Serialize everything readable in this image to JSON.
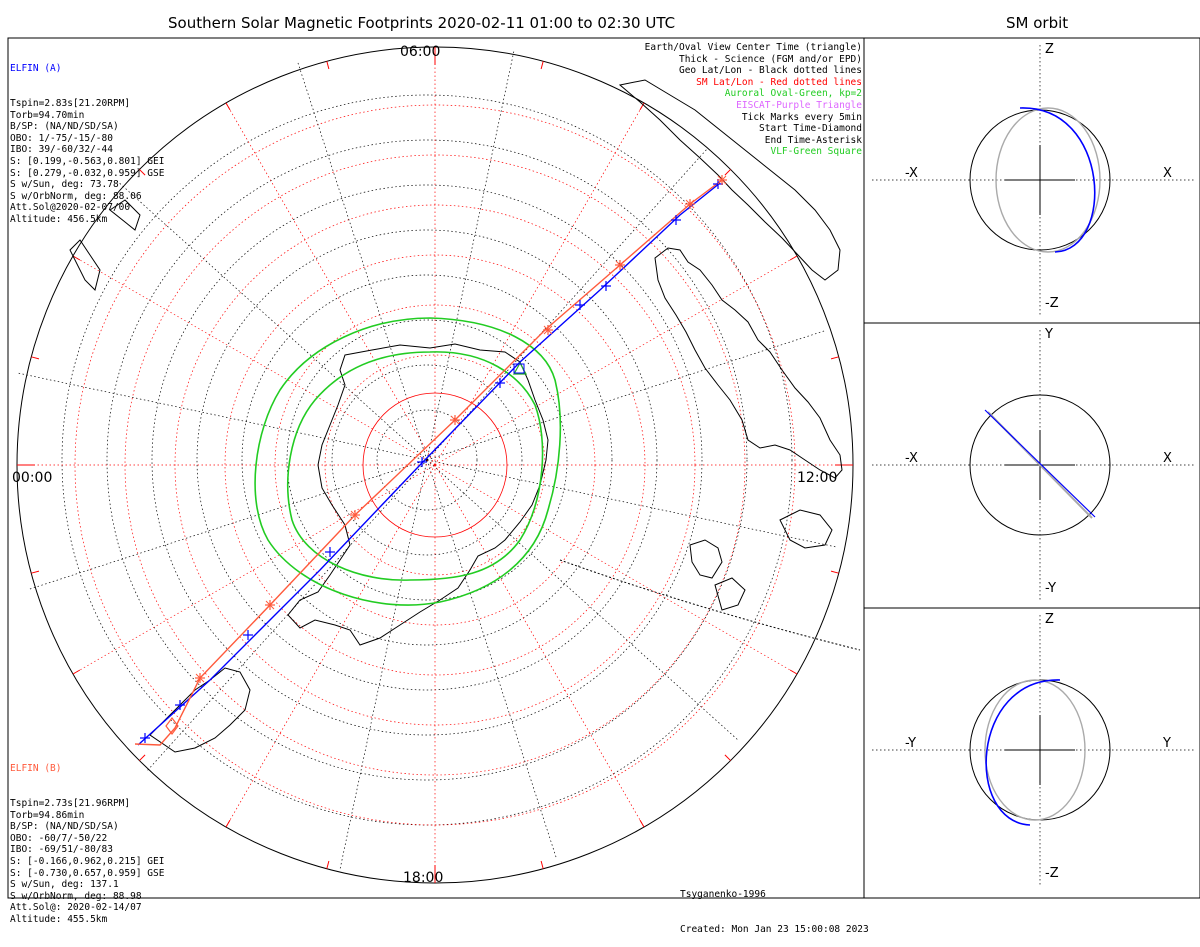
{
  "title": "Southern Solar Magnetic Footprints 2020-02-11 01:00 to 02:30 UTC",
  "orbit_title": "SM orbit",
  "hours": {
    "top": "06:00",
    "left": "00:00",
    "right": "12:00",
    "bottom": "18:00"
  },
  "elfin_a": {
    "name": "ELFIN (A)",
    "lines": [
      "Tspin=2.83s[21.20RPM]",
      "Torb=94.70min",
      "B/SP: (NA/ND/SD/SA)",
      "OBO: 1/-75/-15/-80",
      "IBO: 39/-60/32/-44",
      "S: [0.199,-0.563,0.801] GEI",
      "S: [0.279,-0.032,0.959] GSE",
      "S w/Sun, deg: 73.78",
      "S w/OrbNorm, deg: 88.06",
      "Att.Sol@2020-02-07/00",
      "Altitude: 456.5km"
    ],
    "color": "#0000ff"
  },
  "elfin_b": {
    "name": "ELFIN (B)",
    "lines": [
      "Tspin=2.73s[21.96RPM]",
      "Torb=94.86min",
      "B/SP: (NA/ND/SD/SA)",
      "OBO: -60/7/-50/22",
      "IBO: -69/51/-80/83",
      "S: [-0.166,0.962,0.215] GEI",
      "S: [-0.730,0.657,0.959] GSE",
      "S w/Sun, deg: 137.1",
      "S w/OrbNorm, deg: 88.98",
      "Att.Sol@: 2020-02-14/07",
      "Altitude: 455.5km"
    ],
    "color": "#ff5a3c"
  },
  "legend": [
    {
      "text": "Earth/Oval View Center Time (triangle)",
      "color": "#000000"
    },
    {
      "text": "Thick - Science (FGM and/or EPD)",
      "color": "#000000"
    },
    {
      "text": "Geo Lat/Lon - Black dotted lines",
      "color": "#000000"
    },
    {
      "text": "SM Lat/Lon - Red dotted lines",
      "color": "#ff0000"
    },
    {
      "text": "Auroral Oval-Green, kp=2",
      "color": "#22cc22"
    },
    {
      "text": "EISCAT-Purple Triangle",
      "color": "#dd66ff"
    },
    {
      "text": "Tick Marks every 5min",
      "color": "#000000"
    },
    {
      "text": "Start Time-Diamond",
      "color": "#000000"
    },
    {
      "text": "End Time-Asterisk",
      "color": "#000000"
    },
    {
      "text": "VLF-Green Square",
      "color": "#22cc22"
    }
  ],
  "credits": {
    "model": "Tsyganenko-1996",
    "created": "Created: Mon Jan 23 15:00:08 2023"
  },
  "orbit_panels": [
    {
      "top": "Z",
      "bottom": "-Z",
      "left": "-X",
      "right": "X"
    },
    {
      "top": "Y",
      "bottom": "-Y",
      "left": "-X",
      "right": "X"
    },
    {
      "top": "Z",
      "bottom": "-Z",
      "left": "-Y",
      "right": "Y"
    }
  ]
}
